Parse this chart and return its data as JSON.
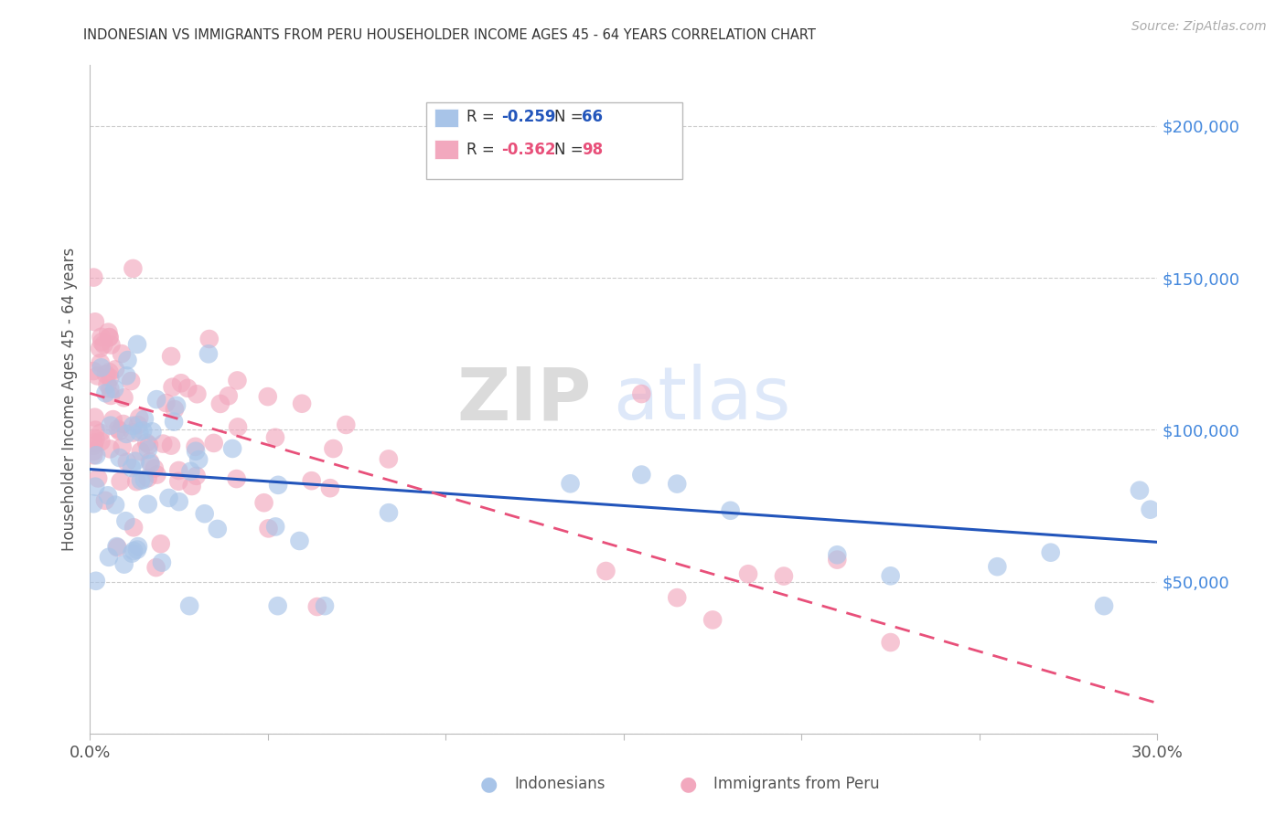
{
  "title": "INDONESIAN VS IMMIGRANTS FROM PERU HOUSEHOLDER INCOME AGES 45 - 64 YEARS CORRELATION CHART",
  "source": "Source: ZipAtlas.com",
  "ylabel": "Householder Income Ages 45 - 64 years",
  "xlim": [
    0.0,
    0.3
  ],
  "ylim": [
    0,
    220000
  ],
  "yticks": [
    0,
    50000,
    100000,
    150000,
    200000
  ],
  "xticks": [
    0.0,
    0.05,
    0.1,
    0.15,
    0.2,
    0.25,
    0.3
  ],
  "xtick_labels": [
    "0.0%",
    "",
    "",
    "",
    "",
    "",
    "30.0%"
  ],
  "background_color": "#ffffff",
  "grid_color": "#cccccc",
  "indonesian_color": "#a8c4e8",
  "peru_color": "#f2a8be",
  "indonesian_line_color": "#2255bb",
  "peru_line_color": "#e8507a",
  "watermark_zip": "ZIP",
  "watermark_atlas": "atlas",
  "legend_r1_label": "R = ",
  "legend_r1_val": "-0.259",
  "legend_n1_label": "N = ",
  "legend_n1_val": "66",
  "legend_r2_label": "R = ",
  "legend_r2_val": "-0.362",
  "legend_n2_label": "N = ",
  "legend_n2_val": "98",
  "legend_label1": "Indonesians",
  "legend_label2": "Immigrants from Peru",
  "indonesian_R": -0.259,
  "indonesian_N": 66,
  "peru_R": -0.362,
  "peru_N": 98,
  "indo_line_x0": 0.0,
  "indo_line_y0": 87000,
  "indo_line_x1": 0.3,
  "indo_line_y1": 63000,
  "peru_line_x0": 0.0,
  "peru_line_y0": 112000,
  "peru_line_x1": 0.3,
  "peru_line_y1": 10000
}
